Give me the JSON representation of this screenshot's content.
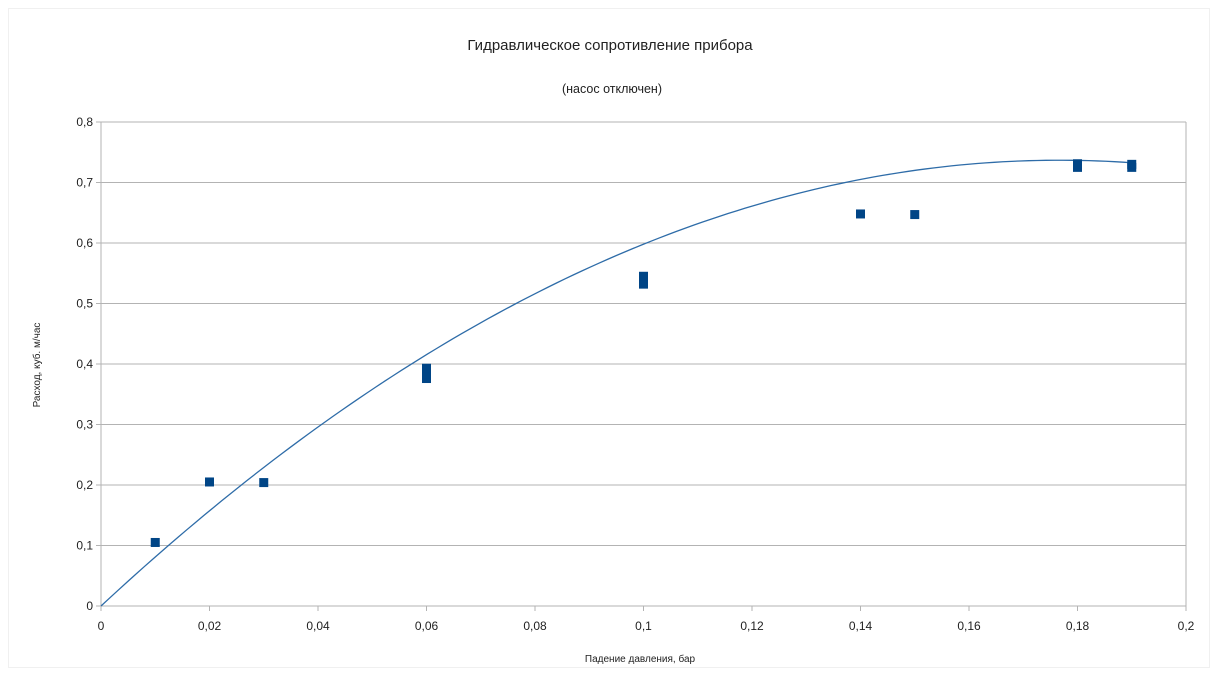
{
  "chart_data": {
    "type": "scatter",
    "title": "Гидравлическое сопротивление прибора",
    "subtitle": "(насос отключен)",
    "xlabel": "Падение давления, бар",
    "ylabel": "Расход, куб. м/час",
    "xlim": [
      0,
      0.2
    ],
    "ylim": [
      0,
      0.8
    ],
    "x_ticks": [
      "0",
      "0,02",
      "0,04",
      "0,06",
      "0,08",
      "0,1",
      "0,12",
      "0,14",
      "0,16",
      "0,18",
      "0,2"
    ],
    "y_ticks": [
      "0",
      "0,1",
      "0,2",
      "0,3",
      "0,4",
      "0,5",
      "0,6",
      "0,7",
      "0,8"
    ],
    "grid": "horizontal",
    "legend": "none",
    "series": [
      {
        "marker": "square",
        "color": "#004586",
        "points": [
          {
            "x": 0.01,
            "y": 0.105
          },
          {
            "x": 0.02,
            "y": 0.205
          },
          {
            "x": 0.03,
            "y": 0.204
          },
          {
            "x": 0.06,
            "y": 0.376
          },
          {
            "x": 0.06,
            "y": 0.383
          },
          {
            "x": 0.06,
            "y": 0.393
          },
          {
            "x": 0.1,
            "y": 0.532
          },
          {
            "x": 0.1,
            "y": 0.545
          },
          {
            "x": 0.14,
            "y": 0.648
          },
          {
            "x": 0.15,
            "y": 0.647
          },
          {
            "x": 0.18,
            "y": 0.725
          },
          {
            "x": 0.18,
            "y": 0.731
          },
          {
            "x": 0.19,
            "y": 0.725
          },
          {
            "x": 0.19,
            "y": 0.73
          }
        ]
      }
    ],
    "trendline": {
      "type": "polynomial",
      "color": "#2e6ca8",
      "coefficients": [
        0,
        8.34,
        -23.6
      ]
    }
  }
}
